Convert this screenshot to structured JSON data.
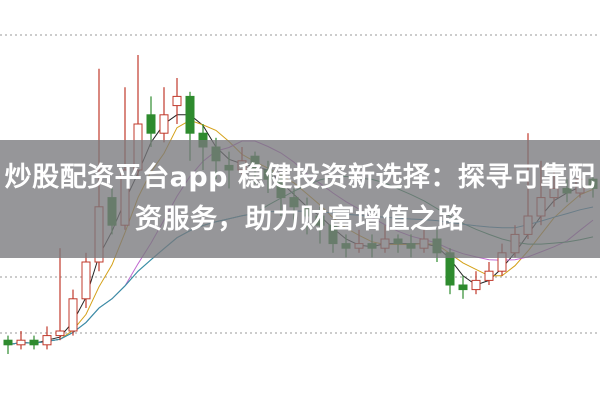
{
  "headline": {
    "line1": "炒股配资平台app 稳健投资新选择：探寻可靠配",
    "line2": "资服务，助力财富增值之路"
  },
  "colors": {
    "up": "#c0392b",
    "down": "#2e8b2e",
    "ma": [
      "#222222",
      "#d4a017",
      "#c06ad0",
      "#2e8b57",
      "#3a8fb0"
    ]
  },
  "chart_data": {
    "type": "candlestick",
    "title": "",
    "grid": "dotted horizontal",
    "ylim": [
      0,
      80
    ],
    "candles_ohlc_order": "open, close, high, low",
    "candles": [
      [
        13,
        12,
        14,
        10
      ],
      [
        12,
        13,
        15,
        11
      ],
      [
        13,
        12,
        14,
        11
      ],
      [
        12,
        14,
        16,
        11
      ],
      [
        14,
        15,
        33,
        13
      ],
      [
        15,
        22,
        24,
        14
      ],
      [
        22,
        30,
        32,
        20
      ],
      [
        30,
        42,
        72,
        28
      ],
      [
        44,
        38,
        46,
        36
      ],
      [
        38,
        50,
        68,
        37
      ],
      [
        50,
        60,
        75,
        48
      ],
      [
        62,
        58,
        66,
        55
      ],
      [
        58,
        62,
        68,
        56
      ],
      [
        64,
        66,
        70,
        60
      ],
      [
        66,
        58,
        67,
        52
      ],
      [
        58,
        55,
        60,
        50
      ],
      [
        55,
        52,
        57,
        48
      ],
      [
        51,
        50,
        54,
        46
      ],
      [
        50,
        52,
        55,
        48
      ],
      [
        53,
        50,
        54,
        47
      ],
      [
        50,
        48,
        52,
        45
      ],
      [
        48,
        44,
        49,
        40
      ],
      [
        44,
        42,
        46,
        38
      ],
      [
        42,
        40,
        44,
        36
      ],
      [
        40,
        38,
        42,
        34
      ],
      [
        38,
        34,
        39,
        32
      ],
      [
        34,
        33,
        36,
        31
      ],
      [
        33,
        34,
        37,
        32
      ],
      [
        34,
        33,
        36,
        31
      ],
      [
        33,
        35,
        38,
        32
      ],
      [
        35,
        34,
        36,
        32
      ],
      [
        34,
        33,
        36,
        31
      ],
      [
        33,
        35,
        37,
        32
      ],
      [
        35,
        32,
        37,
        30
      ],
      [
        32,
        25,
        33,
        23
      ],
      [
        25,
        24,
        27,
        22
      ],
      [
        24,
        26,
        28,
        23
      ],
      [
        26,
        28,
        30,
        25
      ],
      [
        28,
        32,
        34,
        27
      ],
      [
        32,
        36,
        38,
        31
      ],
      [
        36,
        40,
        58,
        35
      ],
      [
        40,
        44,
        52,
        38
      ],
      [
        44,
        46,
        50,
        42
      ],
      [
        46,
        45,
        48,
        43
      ],
      [
        45,
        48,
        50,
        44
      ],
      [
        48,
        46,
        50,
        44
      ]
    ],
    "moving_average_periods": [
      3,
      5,
      10,
      20,
      40
    ]
  }
}
